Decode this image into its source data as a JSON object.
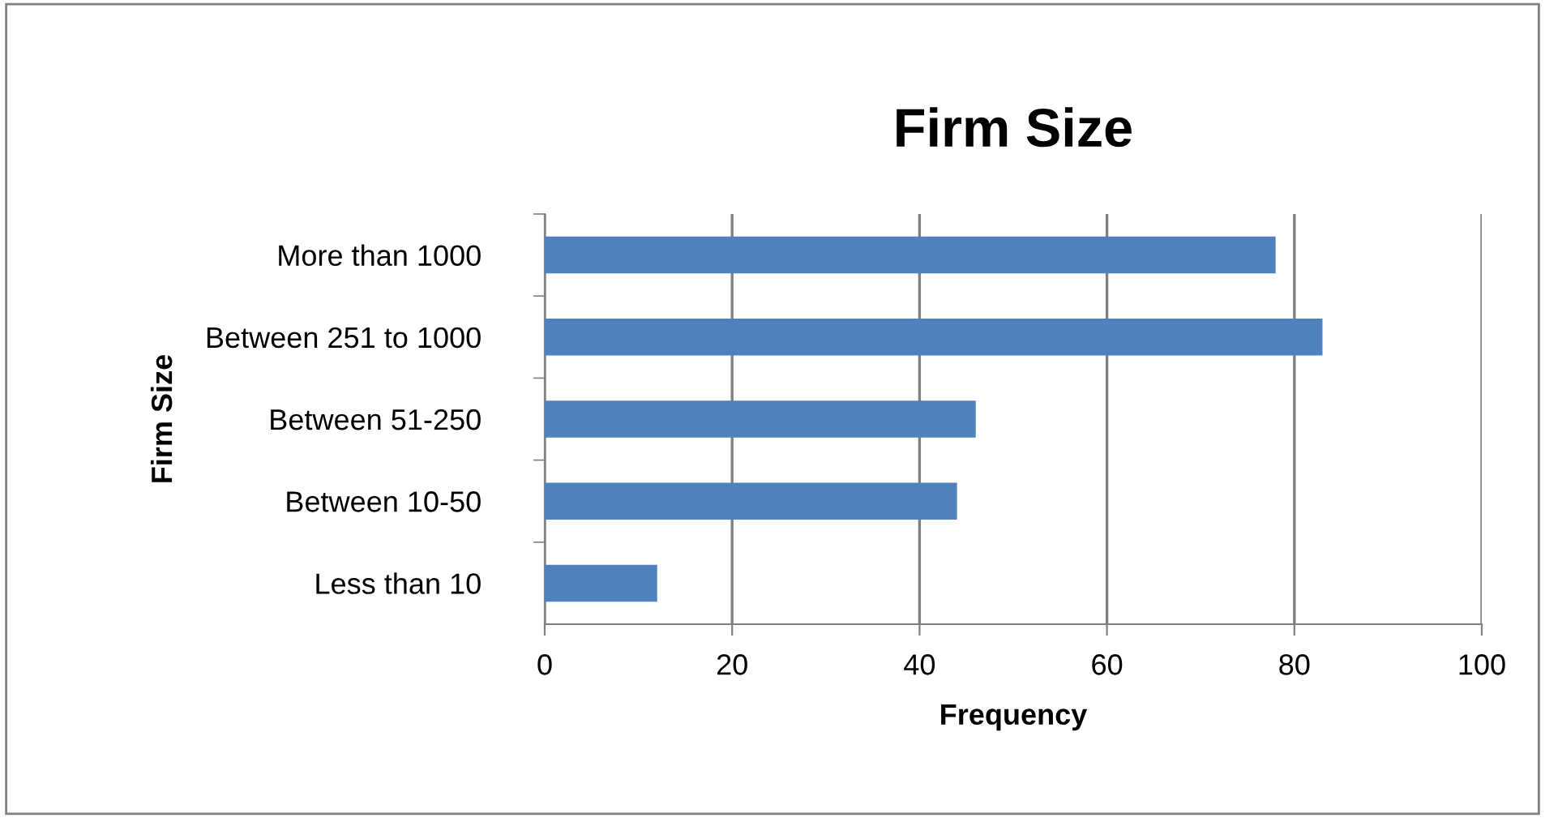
{
  "chart_data": {
    "type": "bar",
    "orientation": "horizontal",
    "title": "Firm Size",
    "xlabel": "Frequency",
    "ylabel": "Firm Size",
    "categories": [
      "More than 1000",
      "Between 251 to 1000",
      "Between 51-250",
      "Between 10-50",
      "Less than 10"
    ],
    "values": [
      78,
      83,
      46,
      44,
      12
    ],
    "color": "#4f81bd",
    "xlim": [
      0,
      100
    ],
    "xticks": [
      0,
      20,
      40,
      60,
      80,
      100
    ],
    "grid": "x",
    "legend": false
  }
}
